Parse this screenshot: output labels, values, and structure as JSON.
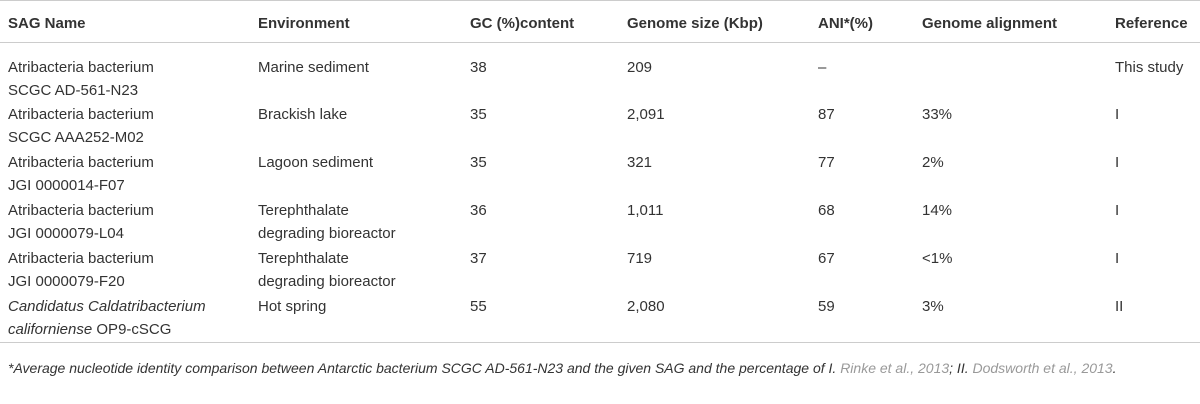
{
  "table": {
    "columns": [
      "SAG Name",
      "Environment",
      "GC (%)content",
      "Genome size (Kbp)",
      "ANI*(%)",
      "Genome alignment",
      "Reference"
    ],
    "rows": [
      [
        "Atribacteria bacterium\nSCGC AD-561-N23",
        "Marine sediment",
        "38",
        "209",
        "–",
        null,
        "This study"
      ],
      [
        "Atribacteria bacterium\nSCGC AAA252-M02",
        "Brackish lake",
        "35",
        "2,091",
        "87",
        "33%",
        "I"
      ],
      [
        "Atribacteria bacterium\nJGI 0000014-F07",
        "Lagoon sediment",
        "35",
        "321",
        "77",
        "2%",
        "I"
      ],
      [
        "Atribacteria bacterium\nJGI 0000079-L04",
        "Terephthalate\ndegrading bioreactor",
        "36",
        "1,011",
        "68",
        "14%",
        "I"
      ],
      [
        "Atribacteria bacterium\nJGI 0000079-F20",
        "Terephthalate\ndegrading bioreactor",
        "37",
        "719",
        "67",
        "<1%",
        "I"
      ],
      [
        {
          "italic": "Candidatus Caldatribacterium\ncaliforniense",
          "plain": "OP9-cSCG"
        },
        "Hot spring",
        "55",
        "2,080",
        "59",
        "3%",
        "II"
      ]
    ]
  },
  "footnote": [
    {
      "text": "*Average nucleotide identity comparison between Antarctic bacterium SCGC AD-561-N23 and the given SAG and the percentage of I. "
    },
    {
      "link": "Rinke et al., 2013"
    },
    {
      "text": "; II. "
    },
    {
      "link": "Dodsworth et al., 2013"
    },
    {
      "text": "."
    }
  ]
}
